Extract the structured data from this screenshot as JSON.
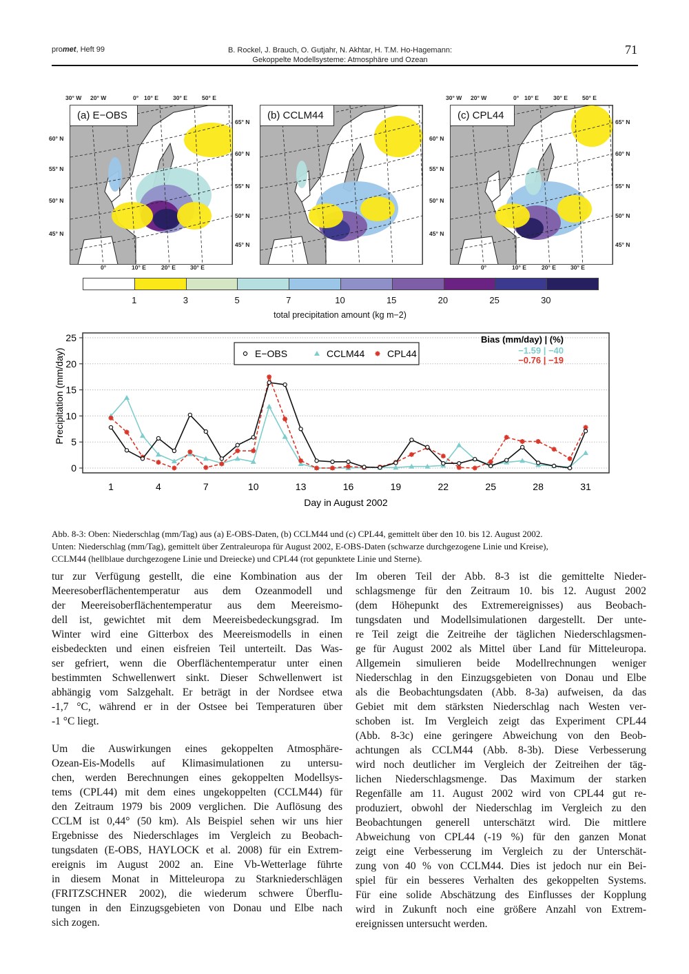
{
  "header": {
    "journal_prefix": "pro",
    "journal_bold": "met",
    "journal_issue": ", Heft 99",
    "authors": "B. Rockel, J. Brauch, O. Gutjahr, N. Akhtar, H. T.M. Ho-Hagemann:",
    "article_title": "Gekoppelte Modellsysteme: Atmosphäre und Ozean",
    "page_number": "71"
  },
  "maps": [
    {
      "label": "(a) E−OBS",
      "top_ticks": [
        "30° W",
        "20° W",
        "0°",
        "10° E",
        "30° E",
        "50° E"
      ],
      "left_ticks": [
        "60° N",
        "55° N",
        "50° N",
        "45° N"
      ],
      "right_ticks": [
        "65° N",
        "60° N",
        "55° N",
        "50° N",
        "45° N"
      ],
      "bottom_ticks": [
        "0°",
        "10° E",
        "20° E",
        "30° E"
      ]
    },
    {
      "label": "(b) CCLM44"
    },
    {
      "label": "(c) CPL44",
      "top_ticks": [
        "30° W",
        "20° W",
        "0°",
        "10° E",
        "30° E",
        "50° E"
      ],
      "left_ticks": [
        "60° N",
        "55° N",
        "50° N",
        "45° N"
      ],
      "right_ticks": [
        "65° N",
        "60° N",
        "55° N",
        "50° N",
        "45° N"
      ],
      "bottom_ticks": [
        "0°",
        "10° E",
        "20° E",
        "30° E"
      ]
    }
  ],
  "colorbar": {
    "colors": [
      "#ffffff",
      "#fbe818",
      "#d4e6c3",
      "#b6e0df",
      "#9cc6e8",
      "#9090c8",
      "#7f5ea8",
      "#6a2283",
      "#3b3a8e",
      "#262061"
    ],
    "ticks": [
      "1",
      "3",
      "5",
      "7",
      "10",
      "15",
      "20",
      "25",
      "30"
    ],
    "label": "total precipitation amount (kg m−2)"
  },
  "chart_data": {
    "type": "line",
    "title": "",
    "xlabel": "Day in August 2002",
    "ylabel": "Precipitation (mm/day)",
    "xlim": [
      1,
      31
    ],
    "ylim": [
      0,
      25
    ],
    "xticks": [
      "1",
      "4",
      "7",
      "10",
      "13",
      "16",
      "19",
      "22",
      "25",
      "28",
      "31"
    ],
    "yticks": [
      "0",
      "5",
      "10",
      "15",
      "20",
      "25"
    ],
    "grid": "horizontal dotted",
    "legend_position": "top-center",
    "x": [
      1,
      2,
      3,
      4,
      5,
      6,
      7,
      8,
      9,
      10,
      11,
      12,
      13,
      14,
      15,
      16,
      17,
      18,
      19,
      20,
      21,
      22,
      23,
      24,
      25,
      26,
      27,
      28,
      29,
      30,
      31
    ],
    "series": [
      {
        "name": "E−OBS",
        "color": "#111111",
        "marker": "circle",
        "dash": "solid",
        "values": [
          7.8,
          3.4,
          1.8,
          5.7,
          3.3,
          10.2,
          7.0,
          1.8,
          4.4,
          5.9,
          16.4,
          16.0,
          7.5,
          1.4,
          1.2,
          1.2,
          0.2,
          0.1,
          1.0,
          5.4,
          4.0,
          0.9,
          0.9,
          1.7,
          0.4,
          1.5,
          4.0,
          1.0,
          0.4,
          0.0,
          7.1
        ]
      },
      {
        "name": "CCLM44",
        "color": "#7ecccc",
        "marker": "triangle",
        "dash": "solid",
        "values": [
          10.0,
          13.5,
          6.2,
          2.6,
          1.3,
          2.7,
          1.8,
          0.9,
          1.8,
          1.2,
          11.8,
          6.0,
          0.8,
          0.0,
          0.0,
          0.0,
          0.1,
          0.1,
          0.1,
          0.3,
          0.3,
          0.5,
          4.4,
          1.7,
          0.6,
          1.1,
          1.4,
          0.6,
          0.4,
          0.2,
          2.9
        ]
      },
      {
        "name": "CPL44",
        "color": "#d9372a",
        "marker": "star",
        "dash": "dashed",
        "values": [
          9.6,
          6.9,
          2.1,
          1.1,
          0.0,
          3.1,
          0.1,
          0.8,
          3.3,
          3.3,
          17.5,
          9.4,
          1.4,
          0.0,
          0.0,
          0.3,
          0.1,
          0.2,
          1.1,
          2.6,
          3.9,
          2.3,
          0.1,
          0.0,
          1.2,
          5.9,
          5.1,
          5.1,
          3.6,
          1.8,
          7.8
        ]
      }
    ],
    "annotation": {
      "title": "Bias (mm/day) | (%)",
      "rows": [
        {
          "series": "CCLM44",
          "text": "−1.59 |  −40",
          "color": "#7ecccc"
        },
        {
          "series": "CPL44",
          "text": "−0.76 |  −19",
          "color": "#d9372a"
        }
      ]
    }
  },
  "caption": {
    "lines": [
      "Abb. 8-3: Oben: Niederschlag (mm/Tag) aus (a) E-OBS-Daten, (b) CCLM44 und (c) CPL44, gemittelt über den 10. bis 12. August 2002.",
      "Unten: Niederschlag (mm/Tag), gemittelt über Zentraleuropa für August 2002, E-OBS-Daten (schwarze durchgezogene Linie und Kreise),",
      "CCLM44 (hellblaue durchgezogene Linie und Dreiecke) und CPL44 (rot gepunktete Linie und Sterne)."
    ]
  },
  "body": {
    "left": [
      [
        "tur zur Verfügung gestellt, die eine Kombination aus der",
        "Meeresoberflächentemperatur aus dem Ozeanmodell und",
        "der Meereisoberflächentemperatur aus dem Meereismo-",
        "dell ist, gewichtet mit dem Meereisbedeckungsgrad. Im",
        "Winter wird eine Gitterbox des Meereismodells in einen",
        "eisbedeckten und einen eisfreien Teil unterteilt. Das Was-",
        "ser gefriert, wenn die Oberflächentemperatur unter einen",
        "bestimmten Schwellenwert sinkt. Dieser Schwellenwert ist",
        "abhängig vom Salzgehalt. Er beträgt in der Nordsee etwa",
        "-1,7 °C, während er in der Ostsee bei Temperaturen über",
        "-1 °C liegt."
      ],
      [
        "Um die Auswirkungen eines gekoppelten Atmosphäre-",
        "Ozean-Eis-Modells auf Klimasimulationen zu untersu-",
        "chen, werden Berechnungen eines gekoppelten Modellsys-",
        "tems (CPL44) mit dem eines ungekoppelten (CCLM44) für",
        "den Zeitraum 1979 bis 2009 verglichen. Die Auflösung des",
        "CCLM ist 0,44° (50 km). Als Beispiel sehen wir uns hier",
        "Ergebnisse des Niederschlages im Vergleich zu Beobach-",
        "tungsdaten (E-OBS, HAYLOCK et al. 2008) für ein Extrem-",
        "ereignis im August 2002 an. Eine Vb-Wetterlage führte",
        "in diesem Monat in Mitteleuropa zu Starkniederschlägen",
        "(FRITZSCHNER 2002), die wiederum schwere Überflu-",
        "tungen in den Einzugsgebieten von Donau und Elbe nach",
        "sich zogen."
      ]
    ],
    "right": [
      [
        "Im oberen Teil der Abb. 8-3 ist die gemittelte Nieder-",
        "schlagsmenge für den Zeitraum 10. bis 12. August 2002",
        "(dem Höhepunkt des Extremereignisses) aus Beobach-",
        "tungsdaten und Modellsimulationen dargestellt. Der unte-",
        "re Teil zeigt die Zeitreihe der täglichen Niederschlagsmen-",
        "ge für August 2002 als Mittel über Land für Mitteleuropa.",
        "Allgemein simulieren beide Modellrechnungen weniger",
        "Niederschlag in den Einzugsgebieten von Donau und Elbe",
        "als die Beobachtungsdaten (Abb. 8-3a) aufweisen, da das",
        "Gebiet mit dem stärksten Niederschlag nach Westen ver-",
        "schoben ist. Im Vergleich zeigt das Experiment CPL44",
        "(Abb. 8-3c) eine geringere Abweichung von den Beob-",
        "achtungen als CCLM44 (Abb. 8-3b). Diese Verbesserung",
        "wird noch deutlicher im Vergleich der Zeitreihen der täg-",
        "lichen Niederschlagsmenge. Das Maximum der starken",
        "Regenfälle am 11. August 2002 wird von CPL44 gut re-",
        "produziert, obwohl der Niederschlag im Vergleich zu den",
        "Beobachtungen generell unterschätzt wird. Die mittlere",
        "Abweichung von CPL44 (-19 %) für den ganzen Monat",
        "zeigt eine Verbesserung im Vergleich zu der Unterschät-",
        "zung von 40 % von CCLM44. Dies ist jedoch nur ein Bei-",
        "spiel für ein besseres Verhalten des gekoppelten Systems.",
        "Für eine solide Abschätzung des Einflusses der Kopplung",
        "wird in Zukunft noch eine größere Anzahl von Extrem-",
        "ereignissen untersucht werden."
      ]
    ]
  }
}
